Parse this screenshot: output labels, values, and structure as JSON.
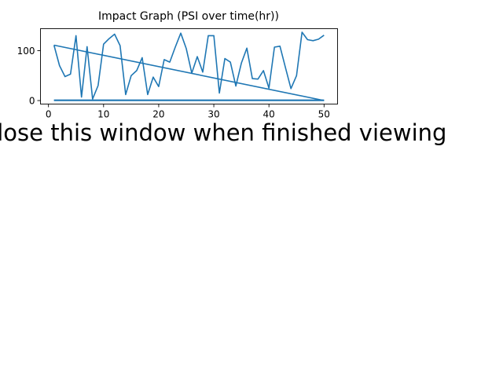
{
  "chart_data": {
    "type": "line",
    "title": "Impact Graph (PSI over time(hr))",
    "xlabel": "",
    "ylabel": "",
    "xlim": [
      -1.45,
      52.45
    ],
    "ylim": [
      -7,
      144
    ],
    "xticks": [
      0,
      10,
      20,
      30,
      40,
      50
    ],
    "yticks": [
      0,
      100
    ],
    "grid": false,
    "series_color": "#1f77b4",
    "line": {
      "x": [
        1,
        2,
        3,
        4,
        5,
        6,
        7,
        8,
        9,
        10,
        11,
        12,
        13,
        14,
        15,
        16,
        17,
        18,
        19,
        20,
        21,
        22,
        23,
        24,
        25,
        26,
        27,
        28,
        29,
        30,
        31,
        32,
        33,
        34,
        35,
        36,
        37,
        38,
        39,
        40,
        41,
        42,
        43,
        44,
        45,
        46,
        47,
        48,
        49,
        50
      ],
      "y": [
        111,
        70,
        48,
        53,
        130,
        7,
        108,
        3,
        30,
        113,
        124,
        133,
        110,
        12,
        50,
        60,
        86,
        12,
        47,
        28,
        82,
        77,
        107,
        135,
        104,
        55,
        88,
        57,
        130,
        130,
        15,
        84,
        77,
        29,
        75,
        105,
        44,
        43,
        60,
        25,
        107,
        109,
        66,
        24,
        50,
        137,
        122,
        120,
        123,
        131
      ]
    },
    "segments": [
      {
        "x": [
          1,
          50
        ],
        "y": [
          111,
          0
        ]
      },
      {
        "x": [
          1,
          50
        ],
        "y": [
          1,
          1
        ]
      },
      {
        "x": [
          1,
          50
        ],
        "y": [
          0,
          0
        ]
      }
    ]
  },
  "footer": {
    "message": "Close this window when finished viewing"
  }
}
